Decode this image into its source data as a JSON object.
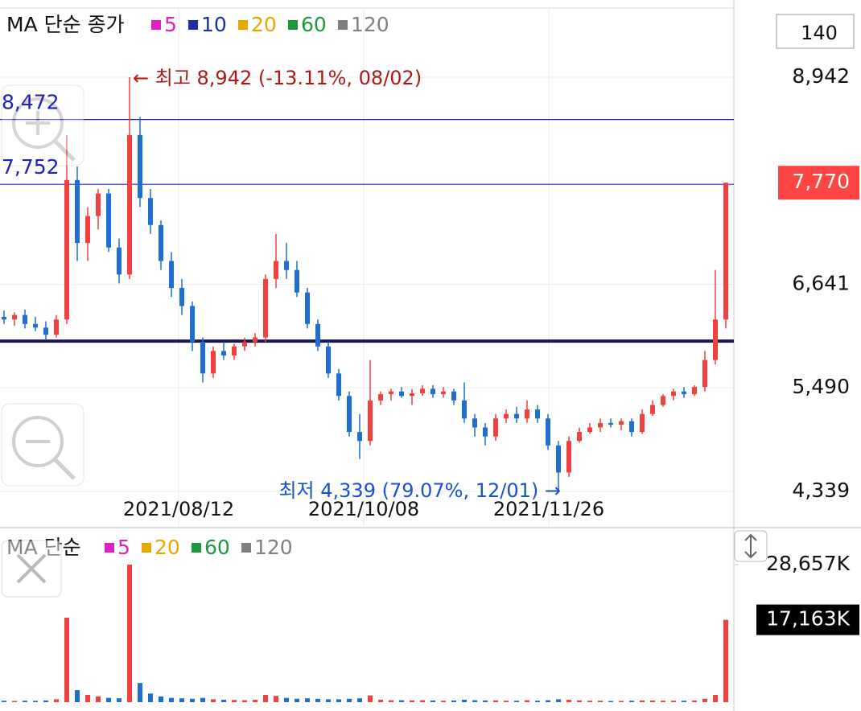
{
  "chart_data": {
    "type": "candlestick",
    "header": "MA 단순 종가",
    "ma_legend": [
      {
        "name": "5",
        "color": "#e020c0"
      },
      {
        "name": "10",
        "color": "#1a2fa8"
      },
      {
        "name": "20",
        "color": "#e8a800"
      },
      {
        "name": "60",
        "color": "#1a9a3a"
      },
      {
        "name": "120",
        "color": "#808080"
      }
    ],
    "period_count": "140",
    "ylim": [
      3937,
      9711
    ],
    "yticks": [
      {
        "value": 8942,
        "label": "8,942"
      },
      {
        "value": 6641,
        "label": "6,641"
      },
      {
        "value": 5490,
        "label": "5,490"
      },
      {
        "value": 4339,
        "label": "4,339"
      }
    ],
    "up_color": "#f04040",
    "down_color": "#1f6fd0",
    "open": [
      6280,
      6250,
      6300,
      6200,
      6160,
      6080,
      6250,
      7800,
      7100,
      7400,
      7650,
      7050,
      6750,
      8300,
      7600,
      7300,
      6900,
      6600,
      6400,
      6000,
      5650,
      5900,
      5850,
      5950,
      6000,
      6050,
      6700,
      6900,
      6800,
      6550,
      6200,
      5950,
      5650,
      5400,
      5000,
      4900,
      5350,
      5420,
      5450,
      5400,
      5430,
      5480,
      5420,
      5450,
      5350,
      5150,
      5050,
      4950,
      5150,
      5200,
      5150,
      5250,
      5150,
      4850,
      4550,
      4900,
      5000,
      5050,
      5100,
      5080,
      5120,
      5000,
      5200,
      5300,
      5400,
      5450,
      5420,
      5500,
      5800,
      6250
    ],
    "high": [
      6350,
      6330,
      6360,
      6280,
      6230,
      6300,
      8300,
      7950,
      7500,
      7700,
      7700,
      7150,
      8942,
      8500,
      7700,
      7350,
      7000,
      6700,
      6450,
      6050,
      5950,
      6000,
      5980,
      6050,
      6100,
      6750,
      7200,
      7100,
      6900,
      6600,
      6250,
      6000,
      5700,
      5450,
      5200,
      5800,
      5450,
      5480,
      5500,
      5480,
      5520,
      5520,
      5500,
      5480,
      5550,
      5200,
      5100,
      5200,
      5250,
      5280,
      5350,
      5300,
      5200,
      4900,
      4950,
      5050,
      5100,
      5150,
      5150,
      5150,
      5150,
      5250,
      5350,
      5420,
      5480,
      5500,
      5520,
      5900,
      6800,
      7770
    ],
    "low": [
      6200,
      6180,
      6150,
      6120,
      6020,
      6050,
      6200,
      6900,
      6900,
      7250,
      7000,
      6650,
      6700,
      7500,
      7200,
      6800,
      6500,
      6300,
      5900,
      5550,
      5600,
      5800,
      5800,
      5900,
      5950,
      6000,
      6600,
      6700,
      6500,
      6150,
      5900,
      5600,
      5350,
      4950,
      4700,
      4850,
      5300,
      5350,
      5380,
      5300,
      5400,
      5380,
      5380,
      5300,
      5100,
      4950,
      4850,
      4900,
      5100,
      5100,
      5100,
      5100,
      4800,
      4339,
      4500,
      4880,
      4980,
      5000,
      5050,
      5020,
      4950,
      4980,
      5180,
      5280,
      5350,
      5380,
      5400,
      5450,
      5750,
      6150
    ],
    "close": [
      6250,
      6300,
      6200,
      6160,
      6080,
      6250,
      7800,
      7100,
      7400,
      7650,
      7050,
      6750,
      8300,
      7600,
      7300,
      6900,
      6600,
      6400,
      6000,
      5650,
      5900,
      5850,
      5950,
      6000,
      6050,
      6700,
      6900,
      6800,
      6550,
      6200,
      5950,
      5650,
      5400,
      5000,
      4900,
      5350,
      5420,
      5450,
      5400,
      5430,
      5480,
      5420,
      5450,
      5350,
      5150,
      5050,
      4950,
      5150,
      5200,
      5150,
      5250,
      5150,
      4850,
      4550,
      4900,
      5000,
      5050,
      5100,
      5080,
      5120,
      5000,
      5200,
      5300,
      5400,
      5450,
      5420,
      5500,
      5800,
      6250,
      7770
    ],
    "h_lines": [
      {
        "value": 8472,
        "label": "8,472"
      },
      {
        "value": 7752,
        "label": "7,752"
      }
    ],
    "reference_line": 6010,
    "current_price": {
      "value": 7770,
      "label": "7,770"
    },
    "high_annotation": "← 최고 8,942 (-13.11%, 08/02)",
    "low_annotation": "최저 4,339 (79.07%, 12/01) →",
    "date_labels": [
      "2021/08/12",
      "2021/10/08",
      "2021/11/26"
    ],
    "volume": {
      "header": "MA 단순",
      "ma_legend": [
        {
          "name": "5",
          "color": "#e020c0"
        },
        {
          "name": "20",
          "color": "#e8a800"
        },
        {
          "name": "60",
          "color": "#1a9a3a"
        },
        {
          "name": "120",
          "color": "#808080"
        }
      ],
      "vlim": [
        0,
        35700
      ],
      "vticks": [
        {
          "value": 28657,
          "label": "28,657K"
        }
      ],
      "values": [
        300,
        250,
        300,
        280,
        350,
        600,
        17600,
        2500,
        1500,
        1200,
        900,
        800,
        28657,
        4000,
        1800,
        1200,
        900,
        800,
        700,
        900,
        600,
        500,
        450,
        400,
        500,
        1500,
        1300,
        900,
        700,
        800,
        700,
        600,
        600,
        700,
        800,
        1400,
        500,
        400,
        400,
        350,
        400,
        350,
        300,
        350,
        500,
        400,
        350,
        350,
        300,
        300,
        400,
        300,
        400,
        600,
        500,
        350,
        300,
        300,
        250,
        250,
        300,
        350,
        350,
        300,
        300,
        300,
        350,
        700,
        1500,
        17163
      ],
      "current": {
        "value": 17163,
        "label": "17,163K"
      }
    }
  }
}
